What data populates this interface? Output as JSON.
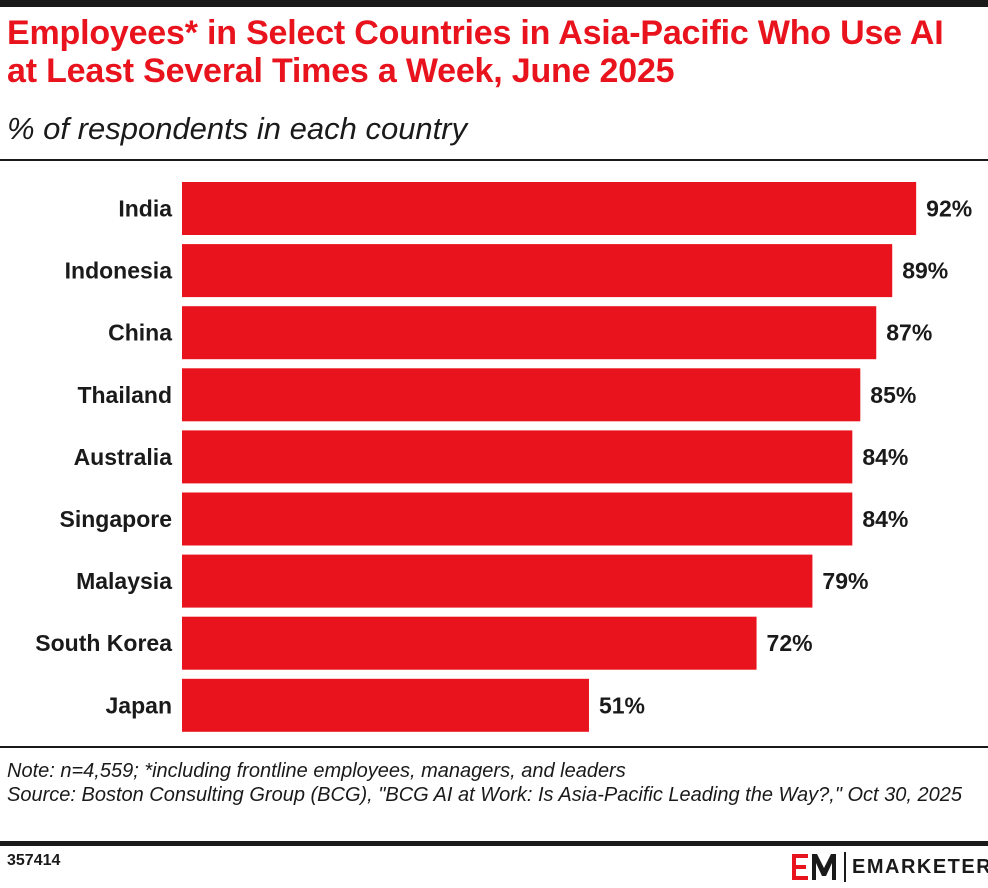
{
  "header": {
    "title": "Employees* in Select Countries in Asia-Pacific Who Use AI at Least Several Times a Week, June 2025",
    "subtitle": "% of respondents in each country"
  },
  "chart_data": {
    "type": "bar",
    "orientation": "horizontal",
    "categories": [
      "India",
      "Indonesia",
      "China",
      "Thailand",
      "Australia",
      "Singapore",
      "Malaysia",
      "South Korea",
      "Japan"
    ],
    "values": [
      92,
      89,
      87,
      85,
      84,
      84,
      79,
      72,
      51
    ],
    "value_labels": [
      "92%",
      "89%",
      "87%",
      "85%",
      "84%",
      "84%",
      "79%",
      "72%",
      "51%"
    ],
    "unit": "%",
    "xlim": [
      0,
      100
    ],
    "bar_color": "#e8131d",
    "grid": false,
    "legend": "none"
  },
  "footer": {
    "note": "Note: n=4,559; *including frontline employees, managers, and leaders",
    "source": "Source: Boston Consulting Group (BCG), \"BCG AI at Work: Is Asia-Pacific Leading the Way?,\" Oct 30, 2025",
    "chart_id": "357414",
    "brand": "EMARKETER"
  },
  "colors": {
    "accent": "#e8131d",
    "text": "#1a1a1a",
    "background": "#ffffff"
  }
}
